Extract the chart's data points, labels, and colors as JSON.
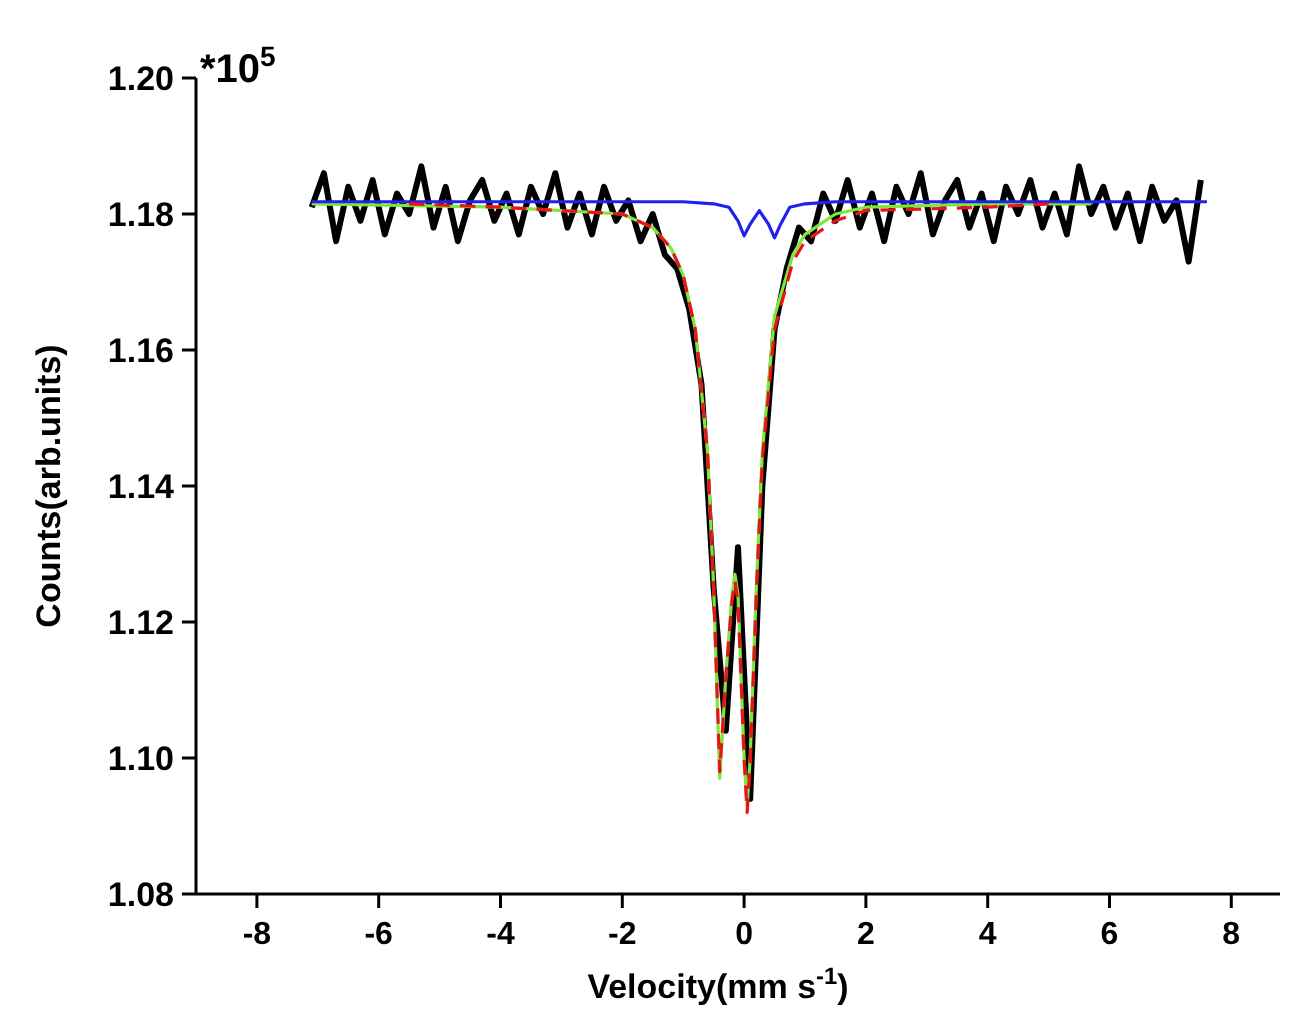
{
  "chart_data": {
    "type": "line",
    "xlabel": "Velocity(mm s$^{-1}$)",
    "ylabel": "Counts(arb.units)",
    "annotations": [
      "*10$^{5}$"
    ],
    "xlim": [
      -9,
      8.8
    ],
    "xticks": [
      -8,
      -6,
      -4,
      -2,
      0,
      2,
      4,
      6,
      8
    ],
    "ylim": [
      1.08,
      1.2
    ],
    "yticks": [
      {
        "value": 1.08,
        "label": "1.08"
      },
      {
        "value": 1.1,
        "label": "1.10"
      },
      {
        "value": 1.12,
        "label": "1.12"
      },
      {
        "value": 1.14,
        "label": "1.14"
      },
      {
        "value": 1.16,
        "label": "1.16"
      },
      {
        "value": 1.18,
        "label": "1.18"
      },
      {
        "value": 1.2,
        "label": "1.20"
      }
    ],
    "grid": false,
    "marker": "none",
    "series": [
      {
        "color": "#000000",
        "line_style": "solid",
        "x": [
          -7.1,
          -6.9,
          -6.7,
          -6.5,
          -6.3,
          -6.1,
          -5.9,
          -5.7,
          -5.5,
          -5.3,
          -5.1,
          -4.9,
          -4.7,
          -4.5,
          -4.3,
          -4.1,
          -3.9,
          -3.7,
          -3.5,
          -3.3,
          -3.1,
          -2.9,
          -2.7,
          -2.5,
          -2.3,
          -2.1,
          -1.9,
          -1.7,
          -1.5,
          -1.3,
          -1.1,
          -0.9,
          -0.7,
          -0.5,
          -0.3,
          -0.1,
          0.1,
          0.3,
          0.5,
          0.7,
          0.9,
          1.1,
          1.3,
          1.5,
          1.7,
          1.9,
          2.1,
          2.3,
          2.5,
          2.7,
          2.9,
          3.1,
          3.3,
          3.5,
          3.7,
          3.9,
          4.1,
          4.3,
          4.5,
          4.7,
          4.9,
          5.1,
          5.3,
          5.5,
          5.7,
          5.9,
          6.1,
          6.3,
          6.5,
          6.7,
          6.9,
          7.1,
          7.3,
          7.5
        ],
        "values": [
          1.181,
          1.186,
          1.176,
          1.184,
          1.179,
          1.185,
          1.177,
          1.183,
          1.18,
          1.187,
          1.178,
          1.184,
          1.176,
          1.182,
          1.185,
          1.179,
          1.183,
          1.177,
          1.184,
          1.18,
          1.186,
          1.178,
          1.183,
          1.177,
          1.184,
          1.179,
          1.182,
          1.176,
          1.18,
          1.174,
          1.172,
          1.166,
          1.155,
          1.125,
          1.104,
          1.131,
          1.094,
          1.14,
          1.163,
          1.172,
          1.178,
          1.176,
          1.183,
          1.179,
          1.185,
          1.178,
          1.183,
          1.176,
          1.184,
          1.18,
          1.186,
          1.177,
          1.182,
          1.185,
          1.178,
          1.183,
          1.176,
          1.184,
          1.18,
          1.185,
          1.178,
          1.183,
          1.177,
          1.187,
          1.18,
          1.184,
          1.178,
          1.183,
          1.176,
          1.184,
          1.179,
          1.182,
          1.173,
          1.185
        ]
      },
      {
        "color": "#e8141c",
        "line_style": "dashed",
        "x": [
          -5.5,
          -4,
          -2,
          -1.5,
          -1.2,
          -1,
          -0.8,
          -0.6,
          -0.5,
          -0.4,
          -0.3,
          -0.2,
          -0.15,
          -0.1,
          0,
          0.05,
          0.1,
          0.2,
          0.3,
          0.5,
          0.8,
          1,
          1.5,
          2,
          4,
          5
        ],
        "values": [
          1.1815,
          1.181,
          1.18,
          1.178,
          1.175,
          1.171,
          1.163,
          1.145,
          1.125,
          1.098,
          1.112,
          1.123,
          1.126,
          1.123,
          1.1,
          1.092,
          1.099,
          1.124,
          1.144,
          1.163,
          1.173,
          1.176,
          1.179,
          1.1805,
          1.181,
          1.1815
        ]
      },
      {
        "color": "#7ee83a",
        "line_style": "solid",
        "x": [
          -7.1,
          -4,
          -2,
          -1.5,
          -1.2,
          -1,
          -0.8,
          -0.6,
          -0.5,
          -0.4,
          -0.3,
          -0.2,
          -0.15,
          -0.1,
          0,
          0.05,
          0.1,
          0.2,
          0.3,
          0.5,
          0.8,
          1,
          1.5,
          2,
          4,
          5.7
        ],
        "values": [
          1.1815,
          1.181,
          1.18,
          1.178,
          1.175,
          1.171,
          1.163,
          1.145,
          1.125,
          1.097,
          1.112,
          1.124,
          1.127,
          1.124,
          1.1,
          1.093,
          1.1,
          1.125,
          1.145,
          1.165,
          1.174,
          1.177,
          1.18,
          1.181,
          1.1815,
          1.1815
        ]
      },
      {
        "color": "#2020f0",
        "line_style": "solid",
        "x": [
          -7.1,
          -1,
          -0.5,
          -0.25,
          -0.1,
          0,
          0.1,
          0.25,
          0.4,
          0.5,
          0.6,
          0.75,
          1,
          1.5,
          7.6
        ],
        "values": [
          1.1818,
          1.1818,
          1.1815,
          1.181,
          1.179,
          1.1768,
          1.1785,
          1.1805,
          1.1785,
          1.1765,
          1.1785,
          1.181,
          1.1815,
          1.1818,
          1.1818
        ]
      }
    ]
  }
}
